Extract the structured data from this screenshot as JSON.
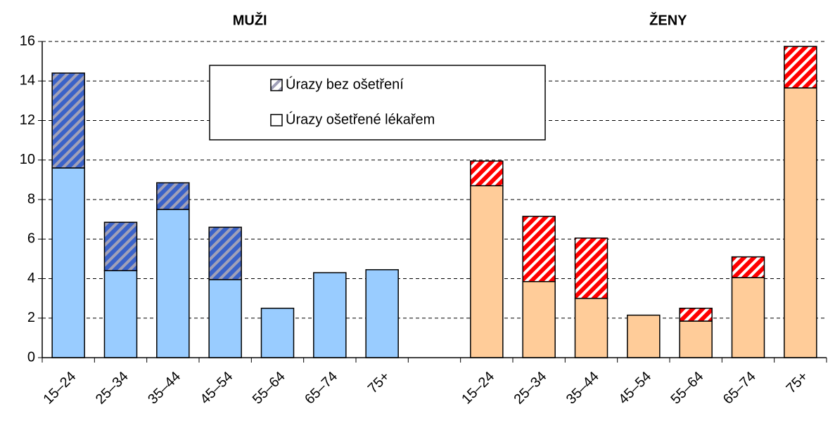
{
  "chart_data": {
    "type": "stacked_bar",
    "titles": [
      "MUŽI",
      "ŽENY"
    ],
    "categories": [
      "15–24",
      "25–34",
      "35–44",
      "45–54",
      "55–64",
      "65–74",
      "75+",
      null,
      "15–24",
      "25–34",
      "35–44",
      "45–54",
      "55–64",
      "65–74",
      "75+"
    ],
    "series": [
      {
        "name": "Úrazy ošetřené lékařem",
        "legend_color": "#ffffff",
        "hatch": false,
        "colors": [
          "#99ccff",
          "#99ccff",
          "#99ccff",
          "#99ccff",
          "#99ccff",
          "#99ccff",
          "#99ccff",
          null,
          "#ffcc99",
          "#ffcc99",
          "#ffcc99",
          "#ffcc99",
          "#ffcc99",
          "#ffcc99",
          "#ffcc99"
        ],
        "values": [
          9.6,
          4.4,
          7.5,
          3.95,
          2.5,
          4.3,
          4.45,
          null,
          8.7,
          3.85,
          3.0,
          2.15,
          1.85,
          4.05,
          13.65
        ]
      },
      {
        "name": "Úrazy bez ošetření",
        "legend_color": "#ffffff",
        "hatch": true,
        "colors": [
          "#3a62c8",
          "#3a62c8",
          "#3a62c8",
          "#3a62c8",
          null,
          null,
          null,
          null,
          "#ff0000",
          "#ff0000",
          "#ff0000",
          null,
          "#ff0000",
          "#ff0000",
          "#ff0000"
        ],
        "values": [
          4.8,
          2.45,
          1.35,
          2.65,
          null,
          null,
          null,
          null,
          1.25,
          3.3,
          3.05,
          null,
          0.65,
          1.05,
          2.1
        ]
      }
    ],
    "ylim": [
      0,
      16
    ],
    "yticks": [
      0,
      2,
      4,
      6,
      8,
      10,
      12,
      14,
      16
    ],
    "grid": true,
    "legend": "top"
  }
}
